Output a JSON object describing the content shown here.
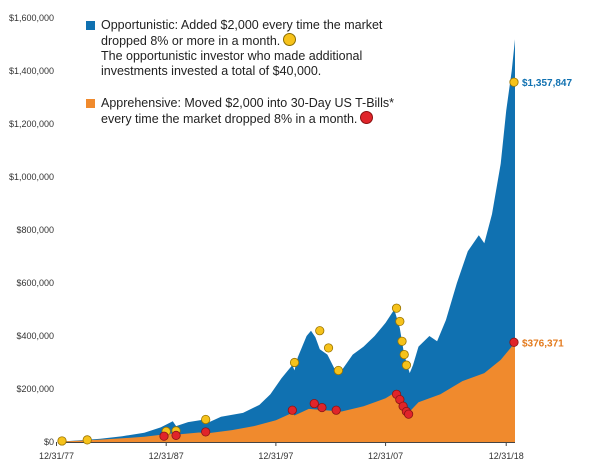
{
  "chart_data": {
    "type": "area",
    "title": "",
    "xlabel": "",
    "ylabel": "",
    "ylim": [
      0,
      1600000
    ],
    "yticks": [
      0,
      200000,
      400000,
      600000,
      800000,
      1000000,
      1200000,
      1400000,
      1600000
    ],
    "ytick_labels": [
      "$0",
      "$200,000",
      "$400,000",
      "$600,000",
      "$800,000",
      "$1,000,000",
      "$1,200,000",
      "$1,400,000",
      "$1,600,000"
    ],
    "xlim": [
      1977.0,
      2019.0
    ],
    "xticks": [
      1977.0,
      1987.0,
      1997.0,
      2007.0,
      2018.0
    ],
    "xtick_labels": [
      "12/31/77",
      "12/31/87",
      "12/31/97",
      "12/31/07",
      "12/31/18"
    ],
    "grid": false,
    "legend_position": "top-left",
    "series": [
      {
        "name": "Opportunistic",
        "color": "#1071b1",
        "legend_text": "Opportunistic: Added $2,000 every time the market dropped 8% or more in a month.",
        "legend_subtext": "The opportunistic investor who made additional investments invested a total of $40,000.",
        "marker_color": "#f6c21b",
        "end_label": "$1,357,847",
        "end_value": 1357847,
        "x": [
          1977.0,
          1979.0,
          1981.0,
          1983.0,
          1985.0,
          1986.5,
          1987.6,
          1987.9,
          1989.0,
          1990.5,
          1990.8,
          1992.0,
          1994.0,
          1995.5,
          1996.5,
          1997.5,
          1998.5,
          1998.7,
          1999.0,
          1999.8,
          2000.2,
          2000.6,
          2001.0,
          2001.7,
          2002.3,
          2002.7,
          2003.0,
          2004.0,
          2005.0,
          2006.0,
          2007.0,
          2007.8,
          2008.3,
          2008.7,
          2009.2,
          2009.5,
          2010.0,
          2011.0,
          2011.7,
          2012.5,
          2013.5,
          2014.5,
          2015.5,
          2016.0,
          2016.7,
          2017.5,
          2018.0,
          2018.5,
          2018.8,
          2019.0
        ],
        "values": [
          2000,
          6000,
          12000,
          22000,
          35000,
          55000,
          78000,
          60000,
          75000,
          85000,
          73000,
          95000,
          110000,
          140000,
          180000,
          240000,
          290000,
          270000,
          320000,
          400000,
          420000,
          395000,
          350000,
          330000,
          280000,
          255000,
          270000,
          330000,
          360000,
          400000,
          450000,
          500000,
          430000,
          330000,
          260000,
          290000,
          360000,
          400000,
          380000,
          460000,
          600000,
          720000,
          780000,
          750000,
          860000,
          1050000,
          1250000,
          1400000,
          1520000,
          1357847
        ]
      },
      {
        "name": "Apprehensive",
        "color": "#f08a2d",
        "legend_text": "Apprehensive: Moved $2,000 into 30-Day US T-Bills* every time the market dropped 8% in a month.",
        "marker_color": "#e0242a",
        "end_label": "$376,371",
        "end_value": 376371,
        "x": [
          1977.0,
          1979.0,
          1981.0,
          1983.0,
          1985.0,
          1987.5,
          1987.9,
          1990.0,
          1990.8,
          1993.0,
          1995.0,
          1997.0,
          1998.5,
          1998.7,
          2000.0,
          2001.5,
          2003.0,
          2005.0,
          2007.0,
          2007.8,
          2008.5,
          2009.2,
          2010.0,
          2012.0,
          2014.0,
          2016.0,
          2017.5,
          2018.5,
          2018.8,
          2019.0
        ],
        "values": [
          2000,
          5000,
          9000,
          14000,
          20000,
          32000,
          28000,
          36000,
          33000,
          45000,
          60000,
          82000,
          110000,
          100000,
          125000,
          120000,
          115000,
          135000,
          165000,
          185000,
          145000,
          115000,
          150000,
          180000,
          230000,
          260000,
          310000,
          360000,
          390000,
          376371
        ]
      }
    ],
    "markers": [
      {
        "series": "Opportunistic",
        "x": 1977.5,
        "value": 4000
      },
      {
        "series": "Opportunistic",
        "x": 1979.8,
        "value": 8000
      },
      {
        "series": "Opportunistic",
        "x": 1987.0,
        "value": 40000
      },
      {
        "series": "Opportunistic",
        "x": 1987.9,
        "value": 42000
      },
      {
        "series": "Opportunistic",
        "x": 1990.6,
        "value": 85000
      },
      {
        "series": "Opportunistic",
        "x": 1998.7,
        "value": 300000
      },
      {
        "series": "Opportunistic",
        "x": 2001.0,
        "value": 420000
      },
      {
        "series": "Opportunistic",
        "x": 2001.8,
        "value": 355000
      },
      {
        "series": "Opportunistic",
        "x": 2002.7,
        "value": 270000
      },
      {
        "series": "Opportunistic",
        "x": 2008.0,
        "value": 505000
      },
      {
        "series": "Opportunistic",
        "x": 2008.3,
        "value": 455000
      },
      {
        "series": "Opportunistic",
        "x": 2008.5,
        "value": 380000
      },
      {
        "series": "Opportunistic",
        "x": 2008.7,
        "value": 330000
      },
      {
        "series": "Opportunistic",
        "x": 2008.9,
        "value": 290000
      },
      {
        "series": "Apprehensive",
        "x": 1986.8,
        "value": 22000
      },
      {
        "series": "Apprehensive",
        "x": 1987.9,
        "value": 25000
      },
      {
        "series": "Apprehensive",
        "x": 1990.6,
        "value": 38000
      },
      {
        "series": "Apprehensive",
        "x": 1998.5,
        "value": 120000
      },
      {
        "series": "Apprehensive",
        "x": 2000.5,
        "value": 145000
      },
      {
        "series": "Apprehensive",
        "x": 2001.2,
        "value": 130000
      },
      {
        "series": "Apprehensive",
        "x": 2002.5,
        "value": 120000
      },
      {
        "series": "Apprehensive",
        "x": 2008.0,
        "value": 180000
      },
      {
        "series": "Apprehensive",
        "x": 2008.3,
        "value": 160000
      },
      {
        "series": "Apprehensive",
        "x": 2008.6,
        "value": 135000
      },
      {
        "series": "Apprehensive",
        "x": 2008.9,
        "value": 115000
      },
      {
        "series": "Apprehensive",
        "x": 2009.1,
        "value": 105000
      }
    ]
  }
}
